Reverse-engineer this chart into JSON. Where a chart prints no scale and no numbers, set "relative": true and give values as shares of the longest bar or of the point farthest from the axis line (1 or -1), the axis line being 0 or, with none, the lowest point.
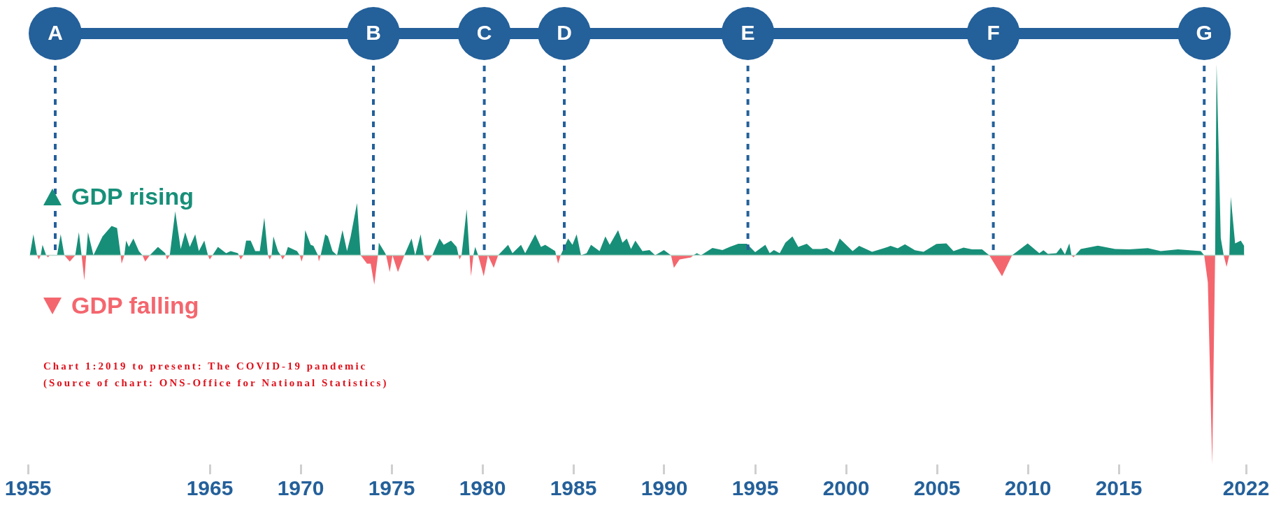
{
  "chart_data": {
    "type": "area",
    "relative": true,
    "legend": "left",
    "grid": false,
    "annotations": [
      "Chart 1:2019 to present: The COVID-19 pandemic",
      "(Source of chart: ONS-Office for National Statistics)"
    ],
    "xlim": [
      1955,
      2022
    ],
    "xticks": [
      1955,
      1965,
      1970,
      1975,
      1980,
      1985,
      1990,
      1995,
      2000,
      2005,
      2010,
      2015,
      2022
    ],
    "ref_lines": [
      {
        "axis": "x",
        "value": 1956.5,
        "label": "A",
        "color": "#24609a",
        "line_style": "dashed"
      },
      {
        "axis": "x",
        "value": 1974,
        "label": "B",
        "color": "#24609a",
        "line_style": "dashed"
      },
      {
        "axis": "x",
        "value": 1980.1,
        "label": "C",
        "color": "#24609a",
        "line_style": "dashed"
      },
      {
        "axis": "x",
        "value": 1984.5,
        "label": "D",
        "color": "#24609a",
        "line_style": "dashed"
      },
      {
        "axis": "x",
        "value": 1994.6,
        "label": "E",
        "color": "#24609a",
        "line_style": "dashed"
      },
      {
        "axis": "x",
        "value": 2008.1,
        "label": "F",
        "color": "#24609a",
        "line_style": "dashed"
      },
      {
        "axis": "x",
        "value": 2019.7,
        "label": "G",
        "color": "#24609a",
        "line_style": "dashed"
      }
    ],
    "series": [
      {
        "name": "GDP rising",
        "color": "#178f78",
        "x": [
          1955.1,
          1955.3,
          1955.5,
          1955.7,
          1955.8,
          1956.0,
          1956.2,
          1956.6,
          1956.8,
          1957.0,
          1957.6,
          1957.8,
          1957.95,
          1958.2,
          1958.3,
          1958.6,
          1959.1,
          1959.6,
          1959.9,
          1960.1,
          1960.3,
          1960.4,
          1960.55,
          1960.8,
          1961.1,
          1961.3,
          1961.7,
          1962.15,
          1962.55,
          1962.58,
          1962.8,
          1963.1,
          1963.4,
          1963.65,
          1963.9,
          1964.2,
          1964.4,
          1964.7,
          1964.9,
          1965.15,
          1965.45,
          1965.9,
          1966.15,
          1966.55,
          1966.6,
          1966.85,
          1967.0,
          1967.25,
          1967.5,
          1967.75,
          1968.0,
          1968.2,
          1968.4,
          1968.5,
          1968.75,
          1968.9,
          1969.15,
          1969.3,
          1969.8,
          1969.95,
          1970.15,
          1970.25,
          1970.55,
          1970.7,
          1970.95,
          1971.1,
          1971.35,
          1971.5,
          1971.75,
          1972.0,
          1972.3,
          1972.55,
          1972.75,
          1973.1,
          1973.3,
          1974.25,
          1974.3,
          1974.65,
          1974.7,
          1975.05,
          1975.7,
          1976.1,
          1976.3,
          1976.6,
          1976.77,
          1977.24,
          1977.64,
          1977.87,
          1978.27,
          1978.58,
          1978.68,
          1978.85,
          1979.13,
          1979.29,
          1979.5,
          1979.6,
          1979.76,
          1980.3,
          1980.86,
          1981.41,
          1981.65,
          1982.12,
          1982.35,
          1982.9,
          1983.22,
          1983.45,
          1984.0,
          1984.05,
          1984.3,
          1984.71,
          1984.95,
          1985.18,
          1985.42,
          1985.73,
          1985.97,
          1986.44,
          1986.76,
          1987.0,
          1987.46,
          1987.7,
          1987.94,
          1988.17,
          1988.41,
          1988.8,
          1989.19,
          1989.5,
          1989.98,
          1990.37,
          1991.6,
          1991.79,
          1992.02,
          1992.65,
          1993.2,
          1993.6,
          1994.07,
          1994.54,
          1995.0,
          1995.56,
          1995.8,
          1996.03,
          1996.35,
          1996.66,
          1997.05,
          1997.37,
          1997.84,
          1998.16,
          1998.63,
          1998.94,
          1999.33,
          1999.65,
          2000.36,
          2000.72,
          2001.43,
          2002.06,
          2002.45,
          2002.84,
          2003.24,
          2003.79,
          2004.26,
          2004.97,
          2005.52,
          2005.91,
          2006.46,
          2006.93,
          2007.48,
          2007.88,
          2009.13,
          2009.99,
          2010.63,
          2010.86,
          2011.1,
          2011.57,
          2011.81,
          2012.04,
          2012.28,
          2012.4,
          2012.6,
          2012.91,
          2013.85,
          2014.8,
          2015.58,
          2016.6,
          2017.31,
          2018.25,
          2018.88,
          2019.51,
          2019.7,
          2020.3,
          2020.38,
          2020.61,
          2020.77,
          2021.08,
          2021.16,
          2021.4,
          2021.71,
          2021.9
        ],
        "values": [
          0,
          0.1,
          0,
          0,
          0.05,
          0,
          0,
          0,
          0.1,
          0,
          0,
          0.11,
          0,
          0,
          0.11,
          0,
          0.09,
          0.14,
          0.13,
          0,
          0,
          0.07,
          0.04,
          0.08,
          0.02,
          0,
          0,
          0.04,
          0.01,
          0,
          0,
          0.21,
          0.03,
          0.11,
          0.04,
          0.1,
          0.02,
          0.07,
          0,
          0,
          0.04,
          0.01,
          0.02,
          0.01,
          0,
          0,
          0.07,
          0.07,
          0.02,
          0.02,
          0.18,
          0,
          0,
          0.09,
          0.02,
          0,
          0,
          0.04,
          0.02,
          0,
          0,
          0.12,
          0.05,
          0.045,
          0,
          0,
          0.1,
          0.09,
          0.02,
          0,
          0.12,
          0.02,
          0.09,
          0.25,
          0,
          0,
          0.06,
          0.01,
          0,
          0,
          0,
          0.08,
          0,
          0.1,
          0,
          0,
          0.08,
          0.05,
          0.07,
          0.04,
          0,
          0,
          0.22,
          0,
          0,
          0.04,
          0,
          0,
          0,
          0.05,
          0.01,
          0.05,
          0.01,
          0.1,
          0.04,
          0.05,
          0.02,
          0,
          0,
          0.08,
          0.05,
          0.1,
          0,
          0.01,
          0.05,
          0.02,
          0.09,
          0.05,
          0.12,
          0.06,
          0.08,
          0.03,
          0.07,
          0.02,
          0.025,
          0,
          0.025,
          0,
          0,
          0.01,
          0,
          0.035,
          0.025,
          0.04,
          0.055,
          0.055,
          0.015,
          0.05,
          0.01,
          0.025,
          0.01,
          0.06,
          0.09,
          0.04,
          0.055,
          0.03,
          0.03,
          0.035,
          0.015,
          0.08,
          0.02,
          0.045,
          0.017,
          0.033,
          0.045,
          0.033,
          0.053,
          0.024,
          0.017,
          0.054,
          0.057,
          0.02,
          0.037,
          0.028,
          0.028,
          0,
          0,
          0.057,
          0.01,
          0.024,
          0.007,
          0.01,
          0.037,
          0.004,
          0.057,
          0,
          0,
          0.03,
          0.046,
          0.03,
          0.028,
          0.034,
          0.02,
          0.028,
          0.024,
          0.02,
          0,
          0,
          0.915,
          0.083,
          0,
          0,
          0.28,
          0.057,
          0.07,
          0.044
        ]
      },
      {
        "name": "GDP falling",
        "color": "#f4666e",
        "x": [
          1955.5,
          1955.6,
          1955.7,
          1956.0,
          1956.1,
          1956.2,
          1957.0,
          1957.3,
          1957.6,
          1957.95,
          1958.1,
          1958.2,
          1960.1,
          1960.15,
          1960.3,
          1961.3,
          1961.45,
          1961.7,
          1962.58,
          1962.65,
          1962.8,
          1964.9,
          1965.0,
          1965.15,
          1966.6,
          1966.7,
          1966.85,
          1968.2,
          1968.3,
          1968.4,
          1968.9,
          1969.0,
          1969.15,
          1969.95,
          1970.05,
          1970.15,
          1970.95,
          1971.0,
          1971.1,
          1973.3,
          1973.65,
          1973.85,
          1974.05,
          1974.25,
          1974.7,
          1974.9,
          1975.05,
          1975.35,
          1975.7,
          1976.77,
          1977.0,
          1977.24,
          1978.68,
          1978.74,
          1978.85,
          1979.29,
          1979.37,
          1979.5,
          1979.76,
          1980.07,
          1980.3,
          1980.62,
          1980.86,
          1984.05,
          1984.16,
          1984.3,
          1990.37,
          1990.53,
          1990.84,
          1991.47,
          1991.6,
          2007.88,
          2008.58,
          2009.13,
          2012.4,
          2012.51,
          2012.6,
          2019.7,
          2019.9,
          2020.14,
          2020.3,
          2020.77,
          2020.93,
          2021.08
        ],
        "values": [
          0,
          -0.02,
          0,
          0,
          -0.01,
          0,
          0,
          -0.03,
          0,
          0,
          -0.12,
          0,
          0,
          -0.04,
          0,
          0,
          -0.03,
          0,
          0,
          -0.02,
          0,
          0,
          -0.02,
          0,
          0,
          -0.02,
          0,
          0,
          -0.02,
          0,
          0,
          -0.02,
          0,
          0,
          -0.03,
          0,
          0,
          -0.03,
          0,
          0,
          -0.04,
          -0.04,
          -0.14,
          0,
          0,
          -0.08,
          0,
          -0.08,
          0,
          0,
          -0.03,
          0,
          0,
          -0.02,
          0,
          0,
          -0.1,
          0,
          0,
          -0.1,
          0,
          -0.06,
          0,
          0,
          -0.04,
          0,
          0,
          -0.06,
          -0.02,
          -0.01,
          0,
          0,
          -0.1,
          0,
          0,
          -0.01,
          0,
          0,
          -0.13,
          -1,
          0,
          0,
          -0.055,
          0
        ]
      }
    ]
  }
}
